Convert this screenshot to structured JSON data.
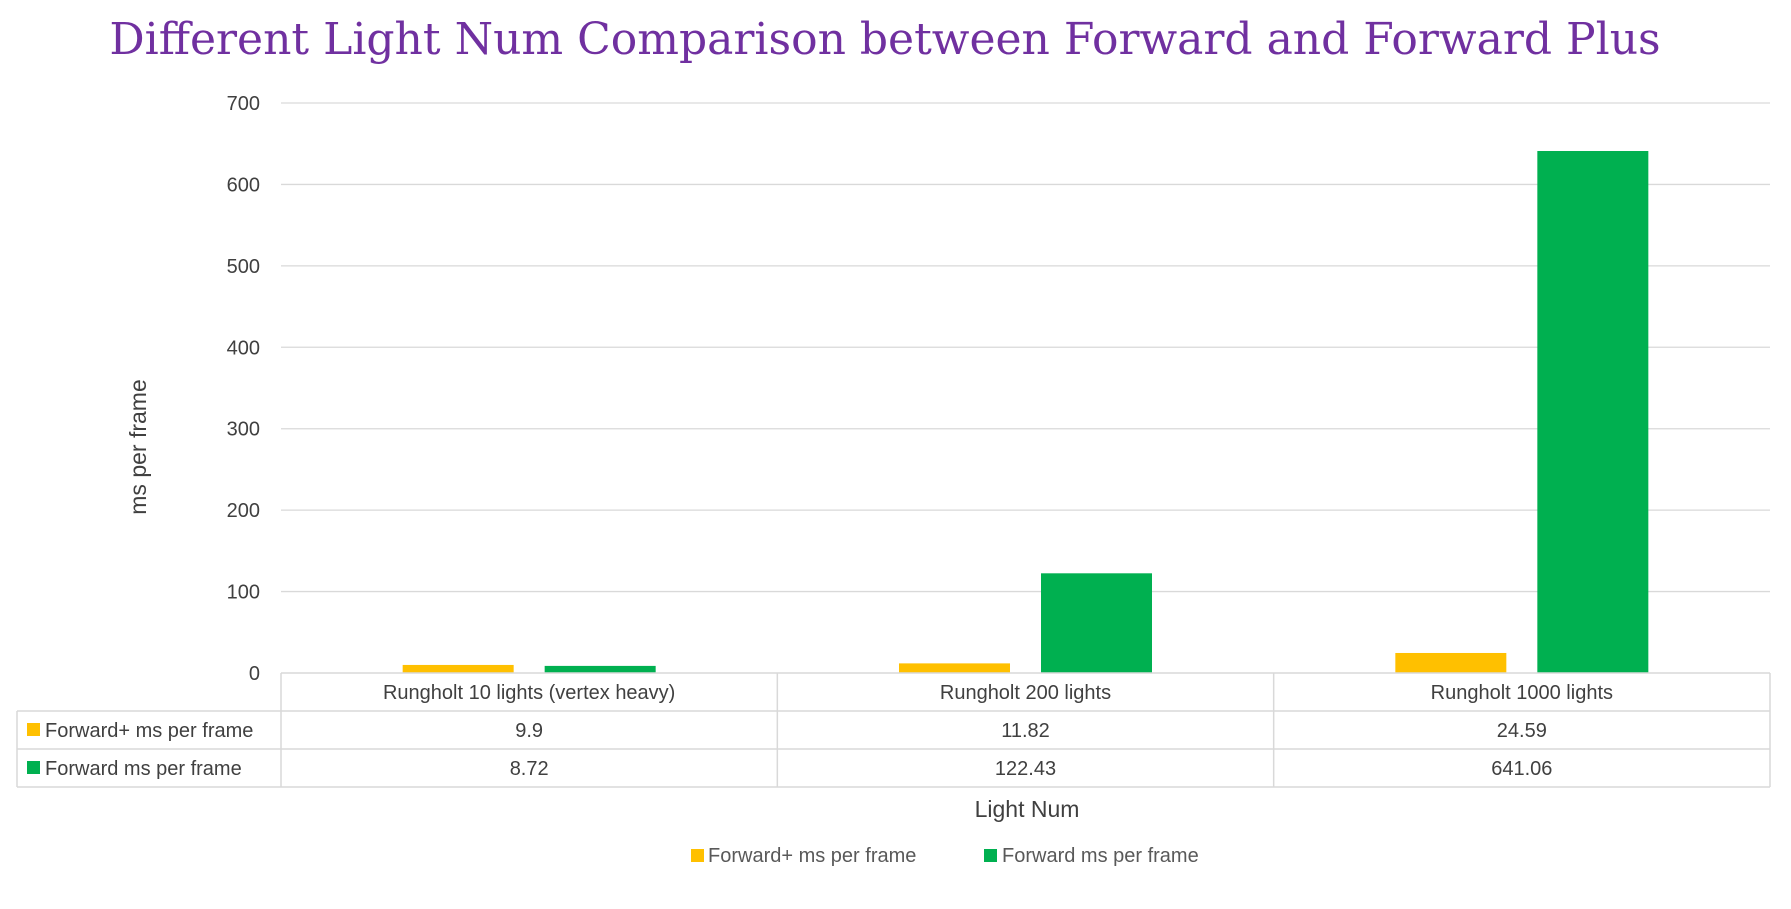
{
  "chart_data": {
    "type": "bar",
    "title": "Different Light Num Comparison between Forward and Forward Plus",
    "xlabel": "Light Num",
    "ylabel": "ms per frame",
    "ylim": [
      0,
      700
    ],
    "yticks": [
      "0",
      "100",
      "200",
      "300",
      "400",
      "500",
      "600",
      "700"
    ],
    "grid": true,
    "legend": "bottom",
    "categories": [
      "Rungholt 10 lights (vertex heavy)",
      "Rungholt 200 lights",
      "Rungholt 1000 lights"
    ],
    "series": [
      {
        "name": "Forward+ ms per frame",
        "color": "#ffc000",
        "values": [
          9.9,
          11.82,
          24.59
        ],
        "labels": [
          "9.9",
          "11.82",
          "24.59"
        ]
      },
      {
        "name": "Forward ms per frame",
        "color": "#00b050",
        "values": [
          8.72,
          122.43,
          641.06
        ],
        "labels": [
          "8.72",
          "122.43",
          "641.06"
        ]
      }
    ]
  }
}
